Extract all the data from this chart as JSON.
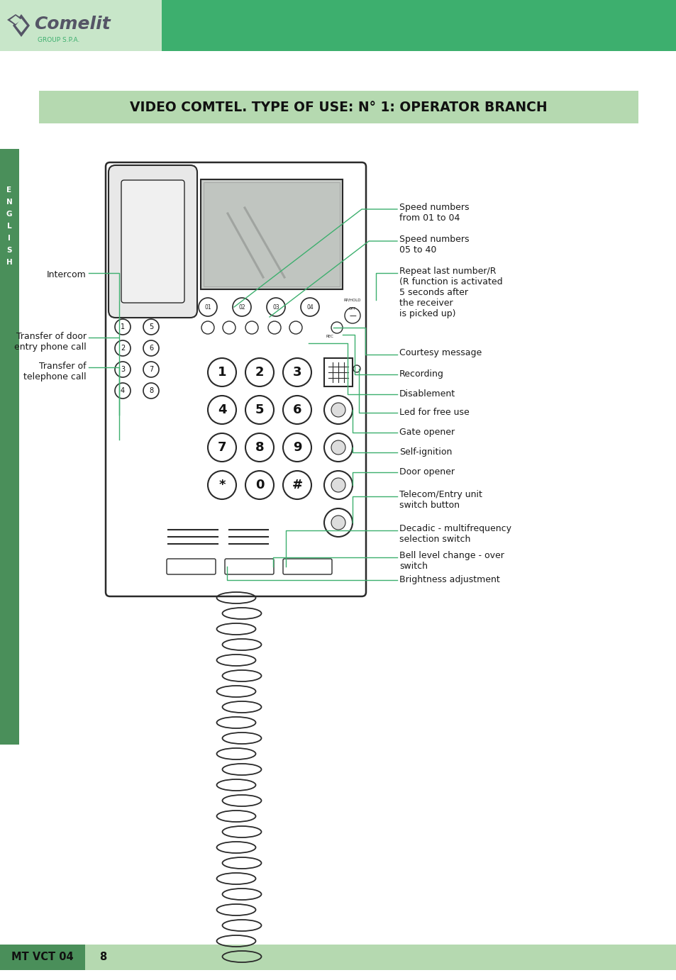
{
  "title": "VIDEO COMTEL. TYPE OF USE: N° 1: OPERATOR BRANCH",
  "header_green": "#3daf6e",
  "header_light_green": "#c8e6c9",
  "title_bar_color": "#b5d9b0",
  "footer_bar_color": "#b5d9b0",
  "footer_dark_color": "#4a8f5a",
  "footer_text": "MT VCT 04",
  "footer_page": "8",
  "side_bar_color": "#4a8f5a",
  "side_chars": [
    "E",
    "N",
    "G",
    "L",
    "I",
    "S",
    "H"
  ],
  "bg_color": "#ffffff",
  "label_color": "#1a1a1a",
  "line_color": "#3daf6e",
  "phone_outline": "#2a2a2a",
  "labels_right": [
    "Speed numbers\nfrom 01 to 04",
    "Speed numbers\n05 to 40",
    "Repeat last number/R\n(R function is activated\n5 seconds after\nthe receiver\nis picked up)",
    "Courtesy message",
    "Recording",
    "Disablement",
    "Led for free use",
    "Gate opener",
    "Self-ignition",
    "Door opener",
    "Telecom/Entry unit\nswitch button",
    "Decadic - multifrequency\nselection switch",
    "Bell level change - over\nswitch",
    "Brightness adjustment"
  ],
  "labels_left": [
    "Intercom",
    "Transfer of door\nentry phone call",
    "Transfer of\ntelephone call"
  ],
  "keypad": [
    [
      "1",
      "2",
      "3"
    ],
    [
      "4",
      "5",
      "6"
    ],
    [
      "7",
      "8",
      "9"
    ],
    [
      "*",
      "0",
      "#"
    ]
  ],
  "speed_btns": [
    "01",
    "02",
    "03",
    "04"
  ]
}
